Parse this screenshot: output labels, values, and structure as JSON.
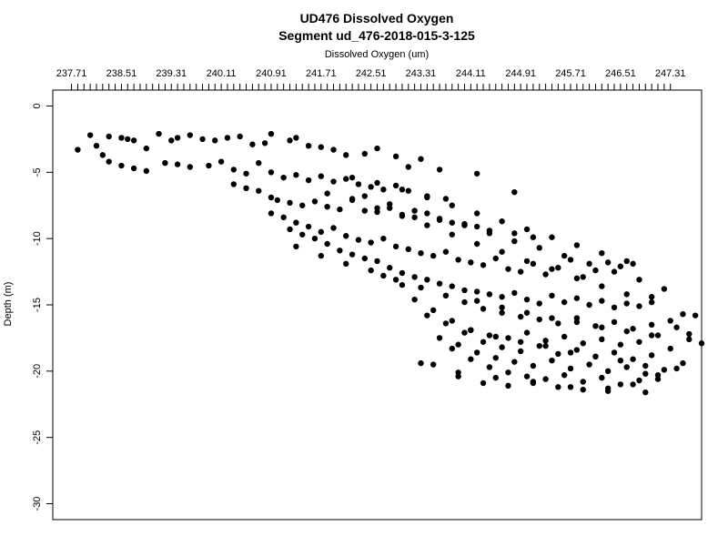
{
  "chart_data": {
    "type": "scatter",
    "title": "UD476 Dissolved Oxygen",
    "subtitle": "Segment ud_476-2018-015-3-125",
    "xlabel": "Dissolved Oxygen (um)",
    "ylabel": "Depth (m)",
    "x_axis_position": "top",
    "xlim": [
      237.41,
      247.81
    ],
    "ylim": [
      1.2,
      -31.2
    ],
    "x_ticks": [
      "237.71",
      "238.51",
      "239.31",
      "240.11",
      "240.91",
      "241.71",
      "242.51",
      "243.31",
      "244.11",
      "244.91",
      "245.71",
      "246.51",
      "247.31"
    ],
    "x_minor_step": 0.1,
    "y_ticks": [
      0,
      -5,
      -10,
      -15,
      -20,
      -25,
      -30
    ],
    "y_tick_labels": [
      "0",
      "-5",
      "-10",
      "-15",
      "-20",
      "-25",
      "-30"
    ],
    "grid": false,
    "legend": "none",
    "marker_color": "#000000",
    "series": [
      {
        "x": [
          237.81,
          238.01,
          238.11,
          238.21,
          238.31,
          238.51,
          238.61,
          238.71,
          238.91,
          239.11,
          239.31,
          239.41,
          239.61,
          239.81,
          240.01,
          240.21,
          240.41,
          240.61,
          240.81,
          240.91,
          241.21,
          241.31,
          241.51,
          241.71,
          241.91,
          242.11,
          242.41,
          242.61,
          242.91,
          243.11,
          243.31,
          243.61,
          244.21,
          244.81,
          238.31,
          238.51,
          238.71,
          238.91,
          239.21,
          239.41,
          239.61,
          239.91,
          240.11,
          240.31,
          240.51,
          240.71,
          240.91,
          241.11,
          241.31,
          241.51,
          241.71,
          241.91,
          242.11,
          242.31,
          242.51,
          242.71,
          242.91,
          243.11,
          243.41,
          243.71,
          240.31,
          240.51,
          240.71,
          240.91,
          241.01,
          241.21,
          241.41,
          241.61,
          241.81,
          242.01,
          242.21,
          242.41,
          242.61,
          242.81,
          243.01,
          243.21,
          243.41,
          243.61,
          243.81,
          244.01,
          244.21,
          244.41,
          244.81,
          245.11,
          240.91,
          241.11,
          241.31,
          241.51,
          241.71,
          241.91,
          242.11,
          242.31,
          242.51,
          242.71,
          242.91,
          243.11,
          243.31,
          243.51,
          243.71,
          243.91,
          244.11,
          244.31,
          244.51,
          244.71,
          244.91,
          245.11,
          245.31,
          245.51,
          245.71,
          245.91,
          246.11,
          246.31,
          246.51,
          246.71,
          241.21,
          241.41,
          241.61,
          241.81,
          242.01,
          242.21,
          242.41,
          242.61,
          242.81,
          243.01,
          243.21,
          243.41,
          243.61,
          243.81,
          244.01,
          244.21,
          244.41,
          244.61,
          244.81,
          245.01,
          245.21,
          245.41,
          245.61,
          245.81,
          246.01,
          246.21,
          246.41,
          246.61,
          246.81,
          247.01,
          247.21,
          241.31,
          241.71,
          242.11,
          242.51,
          242.91,
          243.31,
          243.71,
          244.01,
          244.31,
          244.61,
          244.91,
          245.21,
          245.51,
          245.81,
          246.11,
          246.41,
          246.71,
          247.01,
          247.31,
          247.51,
          242.71,
          243.01,
          243.21,
          243.51,
          243.81,
          244.11,
          244.41,
          244.71,
          245.01,
          245.31,
          245.61,
          245.91,
          246.21,
          246.51,
          246.81,
          247.11,
          247.41,
          247.61,
          243.41,
          243.71,
          244.01,
          244.31,
          244.61,
          244.91,
          245.21,
          245.51,
          245.81,
          246.11,
          246.41,
          246.71,
          247.01,
          247.31,
          247.61,
          243.61,
          243.91,
          244.21,
          244.51,
          244.81,
          245.11,
          245.41,
          245.71,
          246.01,
          246.31,
          246.61,
          246.91,
          247.21,
          247.51,
          243.81,
          244.11,
          244.41,
          244.71,
          245.01,
          245.31,
          245.61,
          245.91,
          246.21,
          246.51,
          246.81,
          247.11,
          247.41,
          243.51,
          243.91,
          244.31,
          244.71,
          245.11,
          245.51,
          245.91,
          246.31,
          246.71,
          247.11,
          247.71,
          247.81,
          244.11,
          244.51,
          244.91,
          245.31,
          245.71,
          246.11,
          246.51,
          246.91,
          244.21,
          244.61,
          245.01,
          245.41,
          245.81,
          246.21,
          246.61,
          247.01,
          243.31,
          243.91,
          244.51,
          245.11,
          245.71,
          246.31,
          246.91,
          242.41,
          242.81,
          243.21,
          243.61,
          244.01,
          244.41,
          244.81,
          245.21,
          245.61,
          246.01,
          246.41,
          246.81,
          242.21,
          242.61,
          243.01,
          243.41,
          243.81,
          244.21,
          244.61,
          245.01,
          245.41,
          245.81,
          246.21,
          246.61,
          241.81,
          242.21,
          242.61,
          243.01,
          243.41,
          243.81,
          244.21,
          244.61,
          245.01,
          245.41,
          245.81,
          246.21,
          246.61,
          247.01
        ],
        "y": [
          -3.3,
          -2.2,
          -3.0,
          -3.7,
          -2.3,
          -2.4,
          -2.5,
          -2.6,
          -3.2,
          -2.1,
          -2.6,
          -2.4,
          -2.2,
          -2.5,
          -2.6,
          -2.4,
          -2.3,
          -2.9,
          -2.8,
          -2.1,
          -2.6,
          -2.4,
          -3.0,
          -3.1,
          -3.3,
          -3.7,
          -3.6,
          -3.2,
          -3.8,
          -4.6,
          -4.0,
          -4.8,
          -5.1,
          -6.5,
          -4.2,
          -4.5,
          -4.7,
          -4.9,
          -4.3,
          -4.4,
          -4.6,
          -4.5,
          -4.2,
          -4.8,
          -5.1,
          -4.3,
          -5.0,
          -5.4,
          -5.2,
          -5.6,
          -5.3,
          -5.7,
          -5.5,
          -5.9,
          -6.1,
          -6.3,
          -6.0,
          -6.4,
          -6.8,
          -7.0,
          -5.9,
          -6.2,
          -6.4,
          -6.9,
          -7.1,
          -7.3,
          -7.5,
          -7.2,
          -7.6,
          -7.8,
          -7.1,
          -7.9,
          -8.0,
          -7.7,
          -8.2,
          -8.4,
          -8.1,
          -8.6,
          -8.8,
          -8.9,
          -9.1,
          -9.4,
          -9.6,
          -9.9,
          -8.1,
          -8.4,
          -8.8,
          -9.1,
          -9.5,
          -9.2,
          -9.8,
          -10.1,
          -10.3,
          -10.0,
          -10.6,
          -10.8,
          -11.1,
          -11.3,
          -11.0,
          -11.6,
          -11.8,
          -12.0,
          -11.5,
          -12.3,
          -12.5,
          -11.9,
          -12.7,
          -12.2,
          -11.6,
          -12.9,
          -12.4,
          -11.8,
          -12.1,
          -11.9,
          -9.3,
          -9.7,
          -10.0,
          -10.4,
          -10.9,
          -11.2,
          -11.5,
          -11.7,
          -12.2,
          -12.6,
          -12.9,
          -13.1,
          -13.4,
          -13.6,
          -13.9,
          -14.0,
          -14.2,
          -14.4,
          -14.1,
          -14.6,
          -14.9,
          -14.3,
          -14.8,
          -14.5,
          -15.0,
          -14.7,
          -15.2,
          -14.9,
          -15.1,
          -14.4,
          -13.8,
          -10.6,
          -11.3,
          -11.9,
          -12.4,
          -13.1,
          -13.7,
          -14.3,
          -14.8,
          -15.3,
          -15.6,
          -15.9,
          -16.1,
          -16.4,
          -16.0,
          -16.6,
          -16.3,
          -16.8,
          -16.5,
          -16.2,
          -15.7,
          -12.8,
          -13.5,
          -14.6,
          -15.4,
          -16.2,
          -16.9,
          -17.3,
          -17.5,
          -17.1,
          -17.7,
          -17.4,
          -17.9,
          -17.6,
          -18.0,
          -17.8,
          -17.3,
          -16.7,
          -17.2,
          -15.8,
          -16.4,
          -17.1,
          -17.8,
          -18.2,
          -18.5,
          -18.1,
          -18.7,
          -18.4,
          -18.9,
          -18.6,
          -19.1,
          -18.8,
          -18.3,
          -17.6,
          -17.5,
          -18.0,
          -18.6,
          -19.0,
          -19.3,
          -19.6,
          -19.2,
          -19.8,
          -19.5,
          -20.0,
          -19.7,
          -20.2,
          -19.9,
          -19.4,
          -18.3,
          -19.1,
          -19.7,
          -20.1,
          -20.4,
          -20.6,
          -20.3,
          -20.8,
          -20.5,
          -21.0,
          -20.7,
          -20.3,
          -19.8,
          -19.5,
          -20.4,
          -20.9,
          -21.1,
          -20.8,
          -21.2,
          -21.4,
          -21.3,
          -21.0,
          -20.6,
          -15.8,
          -17.9,
          -16.9,
          -17.4,
          -17.8,
          -18.1,
          -18.6,
          -18.9,
          -19.2,
          -19.6,
          -14.7,
          -15.2,
          -15.6,
          -16.0,
          -16.3,
          -16.7,
          -17.0,
          -17.3,
          -19.4,
          -20.1,
          -20.5,
          -20.9,
          -21.2,
          -21.5,
          -21.6,
          -6.8,
          -7.4,
          -7.9,
          -8.5,
          -9.0,
          -9.6,
          -10.2,
          -10.7,
          -11.3,
          -11.9,
          -12.5,
          -13.1,
          -5.4,
          -5.8,
          -6.3,
          -6.9,
          -7.5,
          -8.1,
          -8.7,
          -9.3,
          -9.9,
          -10.5,
          -11.1,
          -11.7,
          -6.6,
          -7.0,
          -7.7,
          -8.3,
          -9.0,
          -9.7,
          -10.4,
          -11.0,
          -11.7,
          -12.3,
          -13.0,
          -13.6,
          -14.2,
          -14.8
        ]
      }
    ]
  }
}
